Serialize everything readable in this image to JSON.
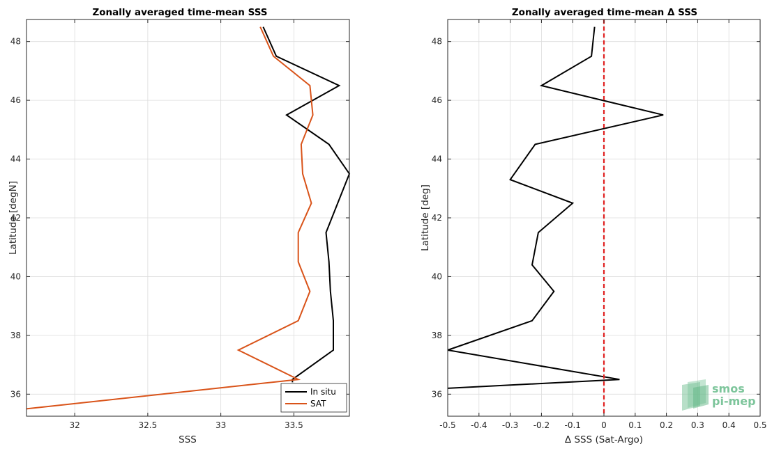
{
  "colors": {
    "insitu": "#000000",
    "sat": "#d95319",
    "zero_line": "#e02020",
    "grid": "#dcdcdc",
    "logo": "#7dc59b"
  },
  "logo": {
    "line1": "smos",
    "line2": "pi-mep"
  },
  "chart_data": [
    {
      "type": "line",
      "title": "Zonally averaged time-mean SSS",
      "xlabel": "SSS",
      "ylabel": "Latitude [degN]",
      "xlim": [
        31.67,
        33.88
      ],
      "ylim": [
        35.25,
        48.75
      ],
      "xticks": [
        32,
        32.5,
        33,
        33.5
      ],
      "xtick_labels": [
        "32",
        "32.5",
        "33",
        "33.5"
      ],
      "yticks": [
        36,
        38,
        40,
        42,
        44,
        46,
        48
      ],
      "ytick_labels": [
        "36",
        "38",
        "40",
        "42",
        "44",
        "46",
        "48"
      ],
      "grid": true,
      "legend_position": "bottom-right",
      "series": [
        {
          "name": "In situ",
          "color_key": "insitu",
          "x": [
            33.49,
            33.49,
            33.77,
            33.77,
            33.75,
            33.74,
            33.72,
            33.88,
            33.74,
            33.45,
            33.81,
            33.38,
            33.29
          ],
          "y": [
            36.4,
            36.5,
            37.5,
            38.5,
            39.5,
            40.5,
            41.5,
            43.5,
            44.5,
            45.5,
            46.5,
            47.5,
            48.5
          ]
        },
        {
          "name": "SAT",
          "color_key": "sat",
          "x": [
            31.67,
            33.53,
            33.12,
            33.53,
            33.61,
            33.53,
            33.53,
            33.62,
            33.56,
            33.55,
            33.63,
            33.61,
            33.36,
            33.27
          ],
          "y": [
            35.5,
            36.5,
            37.5,
            38.5,
            39.5,
            40.5,
            41.5,
            42.5,
            43.5,
            44.5,
            45.5,
            46.5,
            47.5,
            48.5
          ]
        }
      ]
    },
    {
      "type": "line",
      "title": "Zonally averaged time-mean Δ SSS",
      "xlabel": "Δ SSS (Sat-Argo)",
      "ylabel": "Latitude [deg]",
      "xlim": [
        -0.5,
        0.5
      ],
      "ylim": [
        35.25,
        48.75
      ],
      "xticks": [
        -0.5,
        -0.4,
        -0.3,
        -0.2,
        -0.1,
        0,
        0.1,
        0.2,
        0.3,
        0.4,
        0.5
      ],
      "xtick_labels": [
        "-0.5",
        "-0.4",
        "-0.3",
        "-0.2",
        "-0.1",
        "0",
        "0.1",
        "0.2",
        "0.3",
        "0.4",
        "0.5"
      ],
      "yticks": [
        36,
        38,
        40,
        42,
        44,
        46,
        48
      ],
      "ytick_labels": [
        "36",
        "38",
        "40",
        "42",
        "44",
        "46",
        "48"
      ],
      "grid": true,
      "reference_line": {
        "x": 0,
        "style": "dashed",
        "color_key": "zero_line"
      },
      "series": [
        {
          "color_key": "insitu",
          "x": [
            -0.5,
            0.05,
            -0.5,
            -0.23,
            -0.16,
            -0.23,
            -0.21,
            -0.1,
            -0.3,
            -0.22,
            0.19,
            -0.2,
            -0.04,
            -0.03
          ],
          "y": [
            36.2,
            36.5,
            37.5,
            38.5,
            39.5,
            40.4,
            41.5,
            42.5,
            43.3,
            44.5,
            45.5,
            46.5,
            47.5,
            48.5
          ]
        }
      ]
    }
  ]
}
